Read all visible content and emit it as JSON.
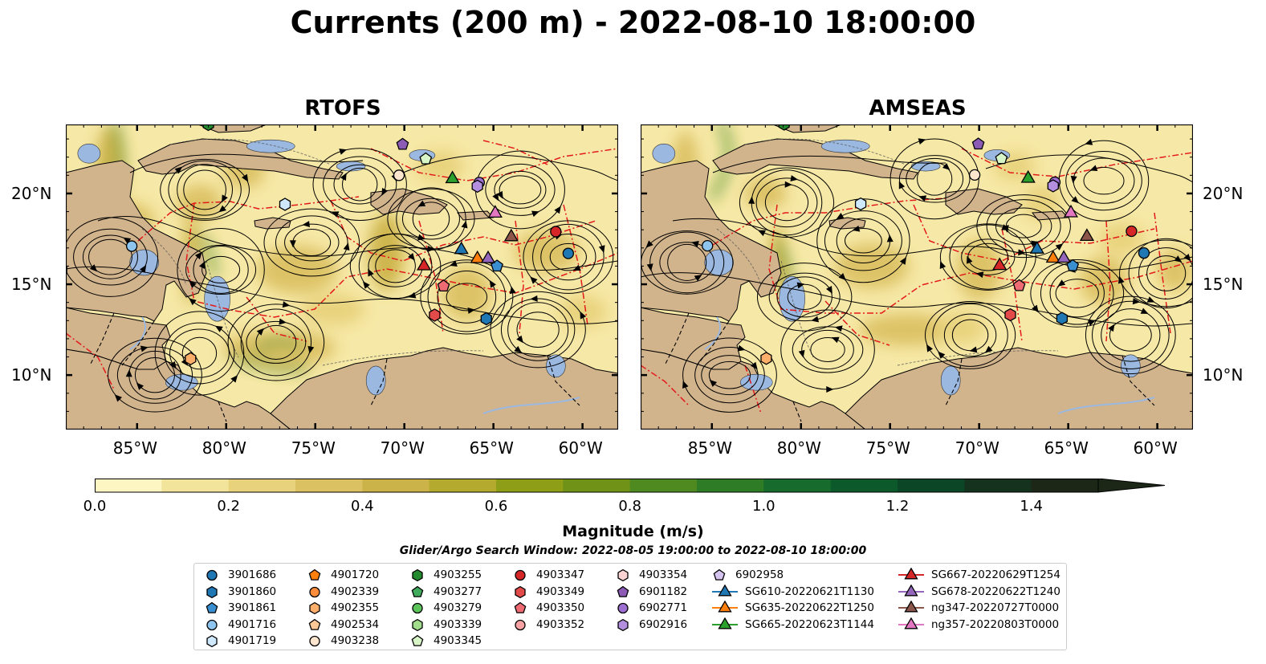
{
  "title": "Currents (200 m) - 2022-08-10 18:00:00",
  "panels": [
    {
      "title": "RTOFS"
    },
    {
      "title": "AMSEAS"
    }
  ],
  "axes": {
    "lon_ticks": [
      "85°W",
      "80°W",
      "75°W",
      "70°W",
      "65°W",
      "60°W"
    ],
    "lat_ticks": [
      "20°N",
      "15°N",
      "10°N"
    ]
  },
  "colorbar": {
    "label": "Magnitude (m/s)",
    "ticks": [
      "0.0",
      "0.2",
      "0.4",
      "0.6",
      "0.8",
      "1.0",
      "1.2",
      "1.4"
    ],
    "range": [
      0.0,
      1.5
    ],
    "extend": "max",
    "colors": [
      "#fdf6c3",
      "#f3e49b",
      "#e8d27c",
      "#dcc163",
      "#ccb349",
      "#b3aa2e",
      "#8e9e16",
      "#6f9217",
      "#4e8a1f",
      "#2f7c26",
      "#166b2d",
      "#0c5a2c",
      "#0b4626",
      "#14321d",
      "#1c2718"
    ]
  },
  "search_window": "Glider/Argo Search Window: 2022-08-05 19:00:00 to 2022-08-10 18:00:00",
  "legend": {
    "columns": [
      [
        {
          "label": "3901686",
          "shape": "circle",
          "color": "#1f77b4"
        },
        {
          "label": "3901860",
          "shape": "hexagon",
          "color": "#1f77b4"
        },
        {
          "label": "3901861",
          "shape": "pentagon",
          "color": "#3a8fd0"
        },
        {
          "label": "4901716",
          "shape": "circle",
          "color": "#8ec5ef"
        },
        {
          "label": "4901719",
          "shape": "hexagon",
          "color": "#cfe8fb"
        }
      ],
      [
        {
          "label": "4901720",
          "shape": "pentagon",
          "color": "#ff7f0e"
        },
        {
          "label": "4902339",
          "shape": "circle",
          "color": "#fd8d3c"
        },
        {
          "label": "4902355",
          "shape": "hexagon",
          "color": "#fdae6b"
        },
        {
          "label": "4902534",
          "shape": "pentagon",
          "color": "#fdc896"
        },
        {
          "label": "4903238",
          "shape": "circle",
          "color": "#fee6ce"
        }
      ],
      [
        {
          "label": "4903255",
          "shape": "hexagon",
          "color": "#238b2e"
        },
        {
          "label": "4903277",
          "shape": "pentagon",
          "color": "#41ab5d"
        },
        {
          "label": "4903279",
          "shape": "circle",
          "color": "#5cc45a"
        },
        {
          "label": "4903339",
          "shape": "hexagon",
          "color": "#a1dd8b"
        },
        {
          "label": "4903345",
          "shape": "pentagon",
          "color": "#d7f5c6"
        }
      ],
      [
        {
          "label": "4903347",
          "shape": "circle",
          "color": "#d62728"
        },
        {
          "label": "4903349",
          "shape": "hexagon",
          "color": "#e34a4a"
        },
        {
          "label": "4903350",
          "shape": "pentagon",
          "color": "#ef6b74"
        },
        {
          "label": "4903352",
          "shape": "circle",
          "color": "#f7a3a3"
        }
      ],
      [
        {
          "label": "4903354",
          "shape": "hexagon",
          "color": "#fcd3d3"
        },
        {
          "label": "6901182",
          "shape": "pentagon",
          "color": "#8c5bb5"
        },
        {
          "label": "6902771",
          "shape": "circle",
          "color": "#9c6fd0"
        },
        {
          "label": "6902916",
          "shape": "hexagon",
          "color": "#b48fe0"
        }
      ],
      [
        {
          "label": "6902958",
          "shape": "pentagon",
          "color": "#d6c4f0"
        },
        {
          "label": "SG610-20220621T1130",
          "shape": "triangle-line",
          "color": "#1f77b4"
        },
        {
          "label": "SG635-20220622T1250",
          "shape": "triangle-line",
          "color": "#ff7f0e"
        },
        {
          "label": "SG665-20220623T1144",
          "shape": "triangle-line",
          "color": "#2ca02c"
        }
      ],
      [
        {
          "label": "SG667-20220629T1254",
          "shape": "triangle-line",
          "color": "#d62728"
        },
        {
          "label": "SG678-20220622T1240",
          "shape": "triangle-line",
          "color": "#9467bd"
        },
        {
          "label": "ng347-20220727T0000",
          "shape": "triangle-line",
          "color": "#8c564b"
        },
        {
          "label": "ng357-20220803T0000",
          "shape": "triangle-line",
          "color": "#e377c2"
        }
      ]
    ]
  },
  "colors": {
    "land": "#d2b48c",
    "shallow_water": "#9ab8e0",
    "eez_lines": "#e31a1c",
    "streamlines": "#000000"
  },
  "markers": [
    {
      "id": "3901686",
      "shape": "circle",
      "color": "#1f77b4",
      "lon": -60.8,
      "lat": 16.7
    },
    {
      "id": "3901860",
      "shape": "hexagon",
      "color": "#1f77b4",
      "lon": -65.4,
      "lat": 13.1
    },
    {
      "id": "3901861",
      "shape": "pentagon",
      "color": "#3a8fd0",
      "lon": -64.8,
      "lat": 16.0
    },
    {
      "id": "4901716",
      "shape": "circle",
      "color": "#8ec5ef",
      "lon": -85.3,
      "lat": 17.1
    },
    {
      "id": "4901719",
      "shape": "hexagon",
      "color": "#cfe8fb",
      "lon": -76.7,
      "lat": 19.4
    },
    {
      "id": "4902355",
      "shape": "hexagon",
      "color": "#fdae6b",
      "lon": -82.0,
      "lat": 10.9
    },
    {
      "id": "4903238",
      "shape": "circle",
      "color": "#fee6ce",
      "lon": -70.3,
      "lat": 21.0
    },
    {
      "id": "4903255",
      "shape": "hexagon",
      "color": "#238b2e",
      "lon": -81.0,
      "lat": 23.8
    },
    {
      "id": "4903345",
      "shape": "pentagon",
      "color": "#d7f5c6",
      "lon": -68.8,
      "lat": 21.9
    },
    {
      "id": "4903347",
      "shape": "circle",
      "color": "#d62728",
      "lon": -61.5,
      "lat": 17.9
    },
    {
      "id": "4903349",
      "shape": "hexagon",
      "color": "#e34a4a",
      "lon": -68.3,
      "lat": 13.3
    },
    {
      "id": "4903350",
      "shape": "pentagon",
      "color": "#ef6b74",
      "lon": -67.8,
      "lat": 14.9
    },
    {
      "id": "6901182",
      "shape": "pentagon",
      "color": "#8c5bb5",
      "lon": -70.1,
      "lat": 22.7
    },
    {
      "id": "6902771",
      "shape": "circle",
      "color": "#9c6fd0",
      "lon": -65.8,
      "lat": 20.6
    },
    {
      "id": "6902916",
      "shape": "hexagon",
      "color": "#b48fe0",
      "lon": -65.9,
      "lat": 20.4
    },
    {
      "id": "SG610-20220621T1130",
      "shape": "triangle",
      "color": "#1f77b4",
      "lon": -66.8,
      "lat": 16.9
    },
    {
      "id": "SG635-20220622T1250",
      "shape": "triangle",
      "color": "#ff7f0e",
      "lon": -65.9,
      "lat": 16.4
    },
    {
      "id": "SG665-20220623T1144",
      "shape": "triangle",
      "color": "#2ca02c",
      "lon": -67.3,
      "lat": 20.8
    },
    {
      "id": "SG667-20220629T1254",
      "shape": "triangle",
      "color": "#d62728",
      "lon": -68.9,
      "lat": 16.0
    },
    {
      "id": "SG678-20220622T1240",
      "shape": "triangle",
      "color": "#9467bd",
      "lon": -65.3,
      "lat": 16.4
    },
    {
      "id": "ng347-20220727T0000",
      "shape": "triangle",
      "color": "#8c564b",
      "lon": -64.0,
      "lat": 17.6
    },
    {
      "id": "ng357-20220803T0000",
      "shape": "triangle",
      "color": "#e377c2",
      "lon": -64.9,
      "lat": 18.9
    }
  ]
}
